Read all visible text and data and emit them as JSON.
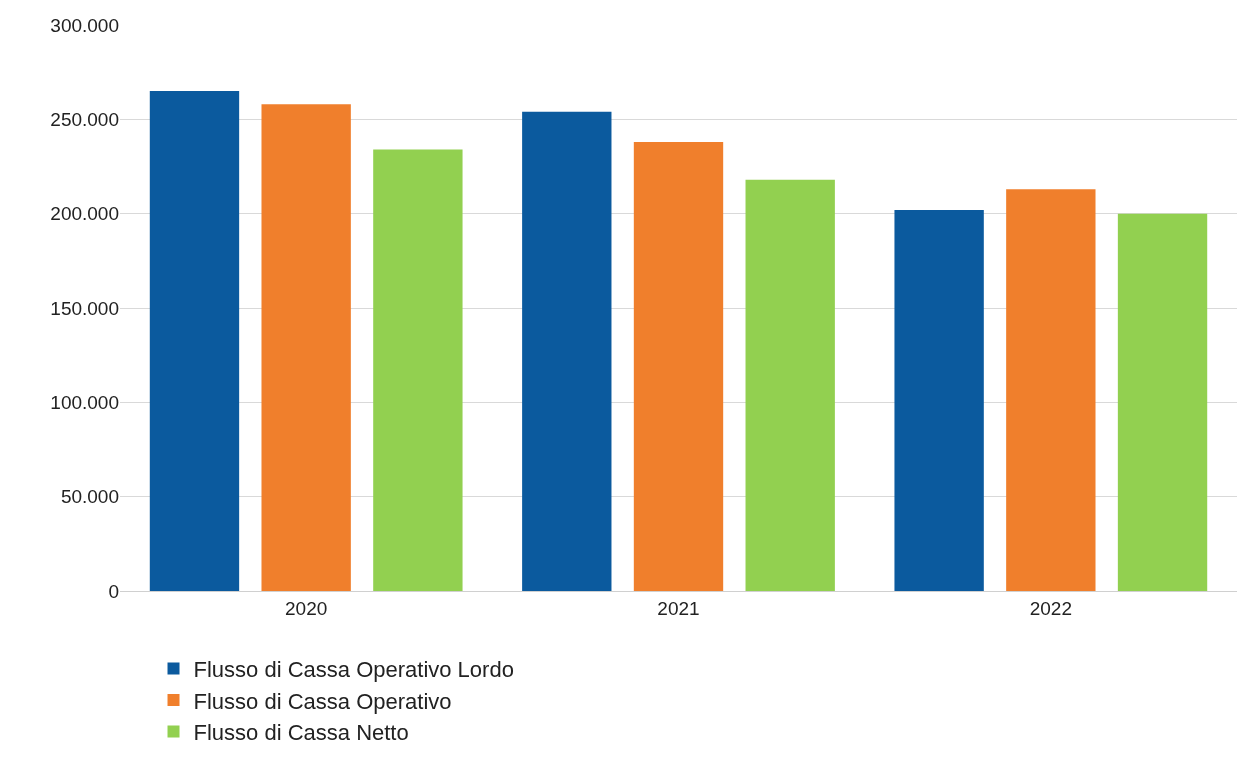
{
  "chart_data": {
    "type": "bar",
    "categories": [
      "2020",
      "2021",
      "2022"
    ],
    "series": [
      {
        "name": "Flusso di Cassa Operativo Lordo",
        "color": "#0b5a9e",
        "values": [
          265000,
          254000,
          202000
        ]
      },
      {
        "name": "Flusso di Cassa Operativo",
        "color": "#f07f2c",
        "values": [
          258000,
          238000,
          213000
        ]
      },
      {
        "name": "Flusso di Cassa Netto",
        "color": "#92d050",
        "values": [
          234000,
          218000,
          200000
        ]
      }
    ],
    "ylim": [
      0,
      300000
    ],
    "yticks": [
      {
        "value": 0,
        "label": "0"
      },
      {
        "value": 50000,
        "label": "50.000"
      },
      {
        "value": 100000,
        "label": "100.000"
      },
      {
        "value": 150000,
        "label": "150.000"
      },
      {
        "value": 200000,
        "label": "200.000"
      },
      {
        "value": 250000,
        "label": "250.000"
      },
      {
        "value": 300000,
        "label": "300.000"
      }
    ],
    "grid": "y",
    "legend": "bottom"
  }
}
